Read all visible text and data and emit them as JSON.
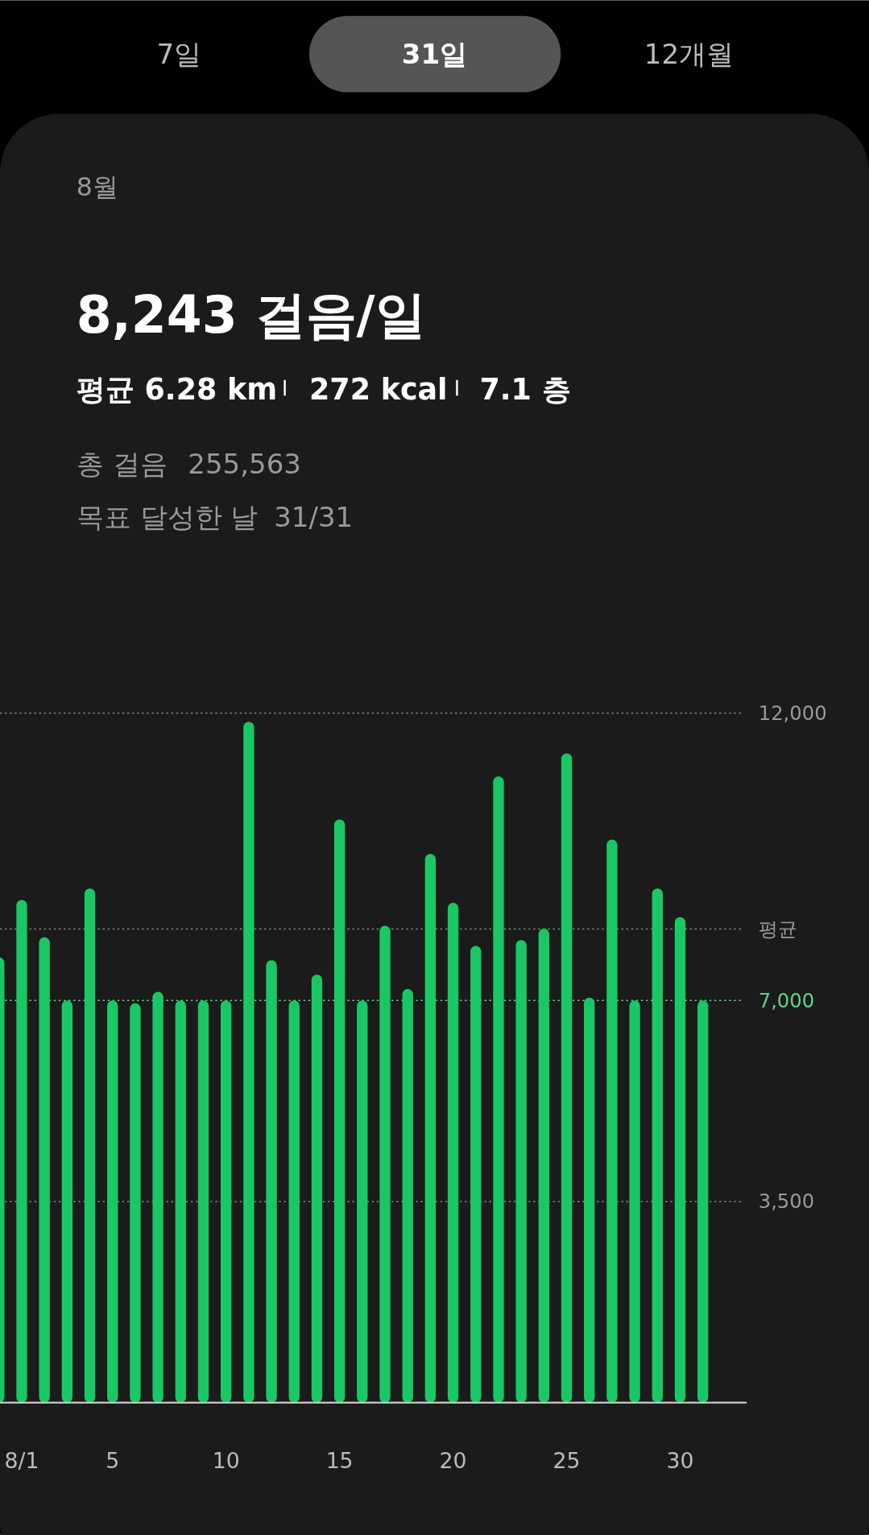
{
  "chart_data": {
    "type": "bar",
    "title": "8월",
    "subtitle": "8,243 걸음/일",
    "annotations": [
      "7일",
      "31일",
      "12개월",
      "평균 6.28 km",
      "272 kcal",
      "7.1 층",
      "총 걸음",
      "255,563",
      "목표 달성한 날",
      "31/31"
    ],
    "categories": [
      null,
      "8/1",
      null,
      null,
      null,
      "5",
      null,
      null,
      null,
      null,
      "10",
      null,
      null,
      null,
      null,
      "15",
      null,
      null,
      null,
      null,
      "20",
      null,
      null,
      null,
      null,
      "25",
      null,
      null,
      null,
      null,
      "30",
      null
    ],
    "values": [
      7750,
      8750,
      8100,
      7000,
      8950,
      7000,
      6950,
      7150,
      7000,
      7000,
      7000,
      11850,
      7700,
      7000,
      7450,
      10150,
      7000,
      8300,
      7200,
      9550,
      8700,
      7950,
      10900,
      8050,
      8250,
      11300,
      7050,
      9800,
      7000,
      8950,
      8450,
      7000
    ],
    "color": "#19c864",
    "ylim": [
      0,
      12000
    ],
    "yticks": [
      {
        "value": 3500,
        "label": "3,500"
      },
      {
        "value": 12000,
        "label": "12,000"
      }
    ],
    "grid": "y",
    "ref_lines": [
      {
        "axis": "y",
        "value": 8243,
        "label": "평균"
      },
      {
        "axis": "y",
        "value": 7000,
        "label": "7,000",
        "color": "#5fd38a"
      }
    ]
  }
}
